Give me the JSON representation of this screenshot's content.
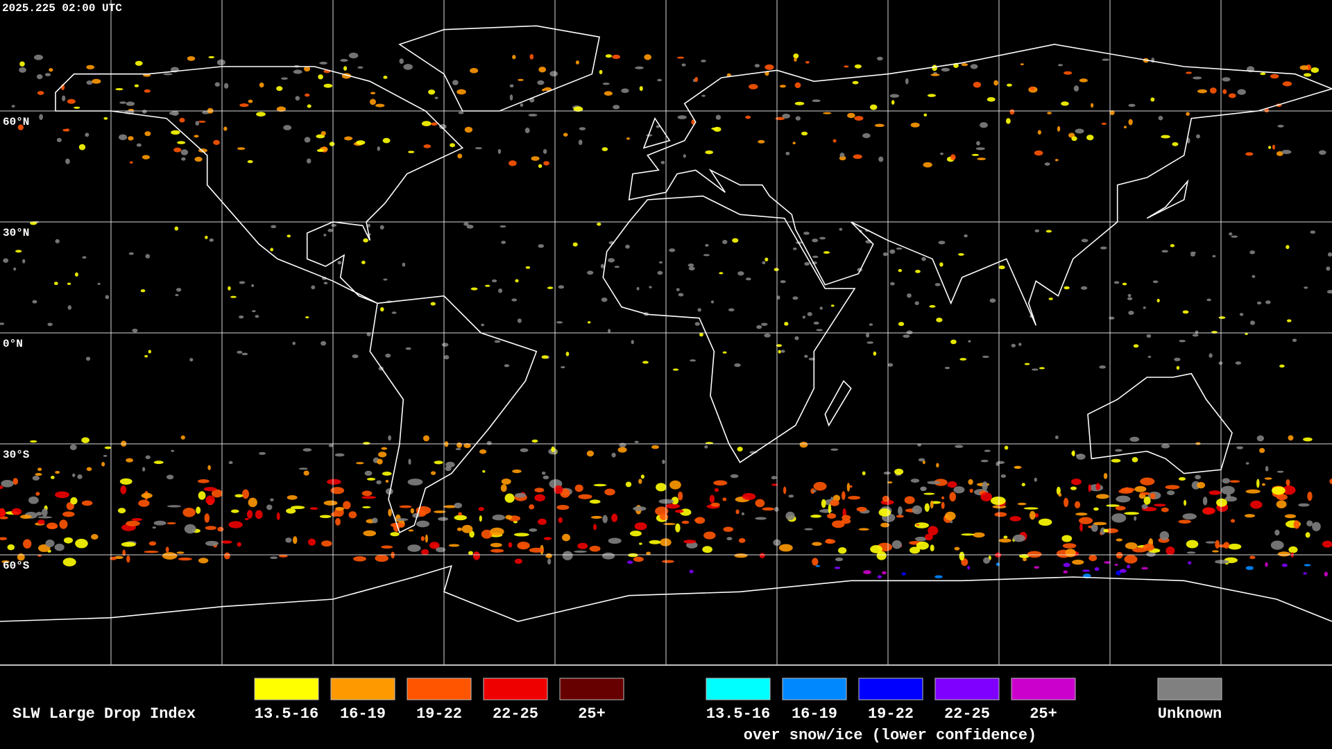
{
  "header": {
    "timestamp": "2025.225 02:00 UTC"
  },
  "map": {
    "lat_labels": [
      "60°N",
      "30°N",
      "0°N",
      "30°S",
      "60°S"
    ]
  },
  "legend": {
    "title": "SLW Large Drop Index",
    "groups": [
      {
        "items": [
          {
            "label": "13.5-16",
            "color": "#ffff00"
          },
          {
            "label": "16-19",
            "color": "#ff9900"
          },
          {
            "label": "19-22",
            "color": "#ff5500"
          },
          {
            "label": "22-25",
            "color": "#ee0000"
          },
          {
            "label": "25+",
            "color": "#660000"
          }
        ]
      },
      {
        "caption": "over snow/ice (lower confidence)",
        "items": [
          {
            "label": "13.5-16",
            "color": "#00ffff"
          },
          {
            "label": "16-19",
            "color": "#0088ff"
          },
          {
            "label": "19-22",
            "color": "#0000ff"
          },
          {
            "label": "22-25",
            "color": "#7f00ff"
          },
          {
            "label": "25+",
            "color": "#cc00cc"
          }
        ]
      }
    ],
    "unknown": {
      "label": "Unknown",
      "color": "#808080"
    }
  }
}
